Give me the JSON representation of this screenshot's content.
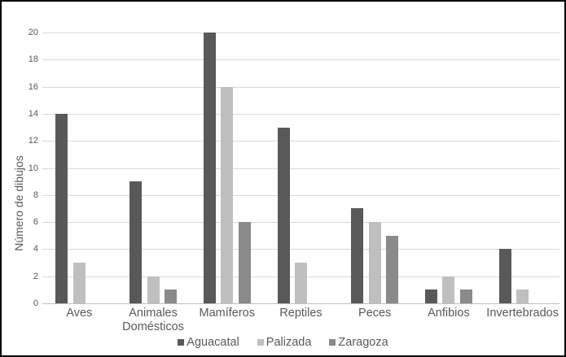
{
  "chart_data": {
    "type": "bar",
    "title": "",
    "xlabel": "",
    "ylabel": "Número de dibujos",
    "categories": [
      "Aves",
      "Animales Domésticos",
      "Mamíferos",
      "Reptiles",
      "Peces",
      "Anfibios",
      "Invertebrados"
    ],
    "series": [
      {
        "name": "Aguacatal",
        "color": "#595959",
        "values": [
          14,
          9,
          20,
          13,
          7,
          1,
          4
        ]
      },
      {
        "name": "Palizada",
        "color": "#bfbfbf",
        "values": [
          3,
          2,
          16,
          3,
          6,
          2,
          1
        ]
      },
      {
        "name": "Zaragoza",
        "color": "#8a8a8a",
        "values": [
          0,
          1,
          6,
          0,
          5,
          1,
          0
        ]
      }
    ],
    "ylim": [
      0,
      20
    ],
    "ytick_step": 2,
    "grid": true,
    "legend_position": "bottom"
  },
  "style": {
    "gridline_color": "#d9d9d9",
    "axis_color": "#bfbfbf",
    "text_color": "#595959",
    "background": "#ffffff",
    "border_color": "#000000"
  }
}
